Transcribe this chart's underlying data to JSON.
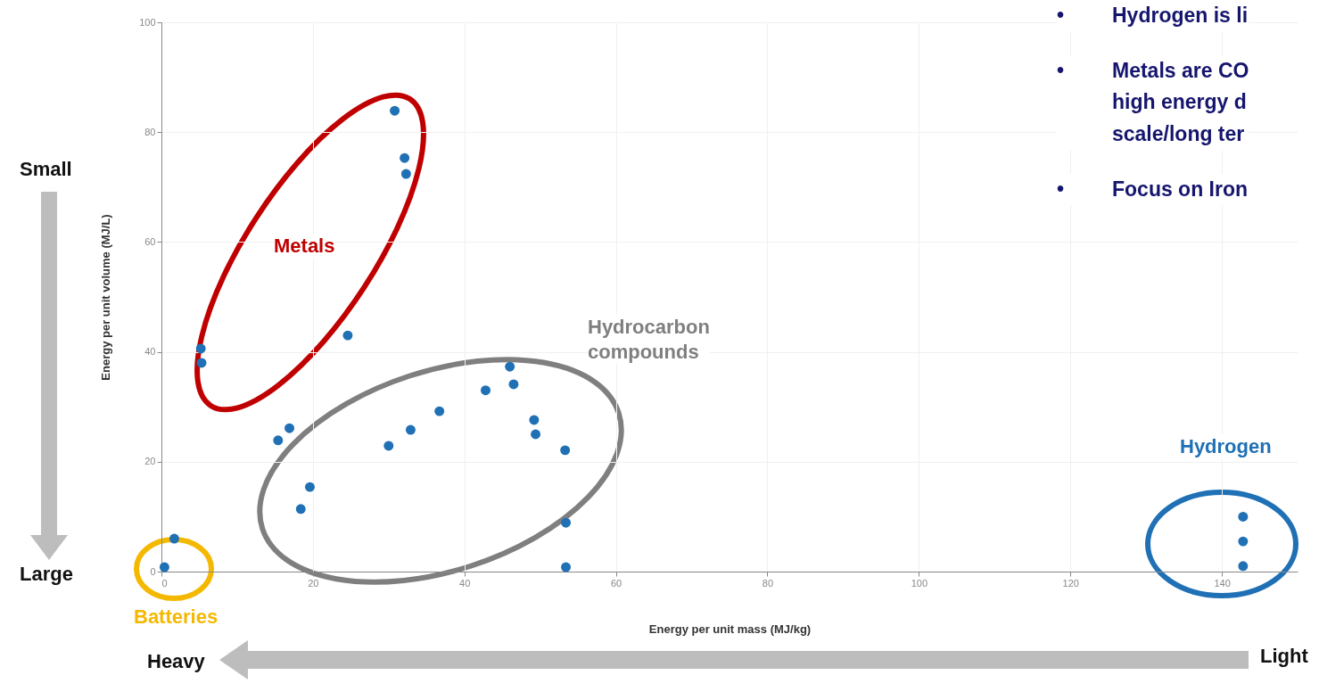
{
  "chart_data": {
    "type": "scatter",
    "xlabel": "Energy per unit mass (MJ/kg)",
    "ylabel": "Energy per unit volume (MJ/L)",
    "xlim": [
      0,
      150
    ],
    "ylim": [
      0,
      100
    ],
    "xticks": [
      0,
      20,
      40,
      60,
      80,
      100,
      120,
      140
    ],
    "yticks": [
      0,
      20,
      40,
      60,
      80,
      100
    ],
    "grid": true,
    "marker": "circle",
    "series": [
      {
        "color": "#1f70b5",
        "x": [
          0.4,
          1.7,
          5.2,
          5.3,
          24.6,
          30.8,
          32.1,
          32.3,
          15.4,
          16.9,
          18.4,
          19.6,
          30,
          32.9,
          36.7,
          42.8,
          46,
          46.5,
          49.2,
          49.4,
          53.3,
          53.4,
          53.4,
          142.8,
          142.8,
          142.8
        ],
        "values": [
          0.8,
          6,
          40.6,
          38,
          43,
          83.9,
          75.3,
          72.4,
          23.9,
          26.1,
          11.4,
          15.4,
          22.9,
          25.8,
          29.2,
          33,
          37.3,
          34.1,
          27.6,
          25,
          22.1,
          8.9,
          0.8,
          10,
          5.5,
          1
        ]
      }
    ],
    "annotations": [
      "Metals",
      "Hydrocarbon\ncompounds",
      "Hydrogen",
      "Batteries",
      "Small",
      "Large",
      "Heavy",
      "Light",
      "•\tHydrogen is li",
      "•\tMetals are CO\n\thigh energy d\n\tscale/long ter",
      "•\tFocus on Iron"
    ]
  }
}
